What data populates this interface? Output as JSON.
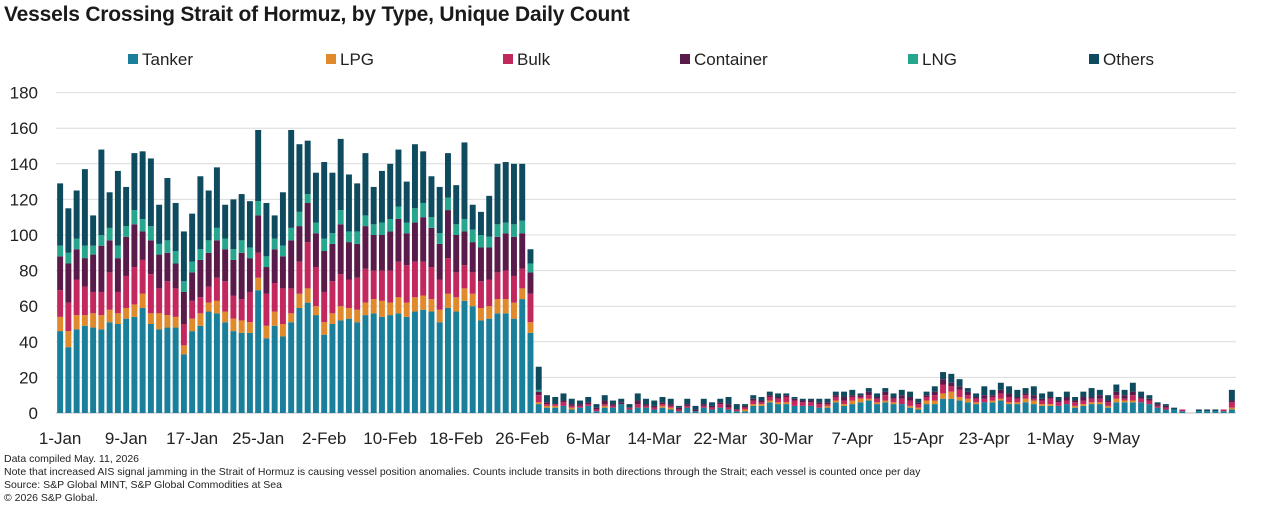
{
  "title": "Vessels Crossing Strait of Hormuz, by Type, Unique Daily Count",
  "notes": [
    "Data compiled May. 11, 2026",
    "Note that increased AIS signal jamming in the Strait of Hormuz is causing vessel position anomalies. Counts include transits in both directions through the Strait; each vessel is counted once per day",
    "Source: S&P Global MINT, S&P Global Commodities at Sea",
    "© 2026 S&P Global."
  ],
  "chart_data": {
    "type": "bar",
    "stacked": true,
    "title": "Vessels Crossing Strait of Hormuz, by Type, Unique Daily Count",
    "xlabel": "",
    "ylabel": "",
    "ylim": [
      0,
      180
    ],
    "yticks": [
      0,
      20,
      40,
      60,
      80,
      100,
      120,
      140,
      160,
      180
    ],
    "xtick_labels": [
      "1-Jan",
      "9-Jan",
      "17-Jan",
      "25-Jan",
      "2-Feb",
      "10-Feb",
      "18-Feb",
      "26-Feb",
      "6-Mar",
      "14-Mar",
      "22-Mar",
      "30-Mar",
      "7-Apr",
      "15-Apr",
      "23-Apr",
      "1-May",
      "9-May"
    ],
    "xtick_every_days": 8,
    "legend_position": "top",
    "grid": "horizontal",
    "first_date": "2026-01-01",
    "last_date": "2026-05-10",
    "series": [
      {
        "name": "Tanker",
        "color": "#1a7f9b",
        "values": [
          46,
          37,
          47,
          49,
          48,
          47,
          51,
          50,
          53,
          54,
          59,
          50,
          47,
          48,
          48,
          33,
          46,
          49,
          57,
          56,
          51,
          46,
          45,
          45,
          69,
          42,
          49,
          43,
          51,
          59,
          62,
          55,
          44,
          50,
          52,
          53,
          51,
          55,
          56,
          54,
          55,
          56,
          54,
          57,
          58,
          57,
          51,
          59,
          57,
          63,
          60,
          52,
          53,
          56,
          56,
          53,
          64,
          45,
          5,
          3,
          3,
          4,
          2,
          3,
          4,
          1,
          3,
          3,
          5,
          2,
          3,
          3,
          2,
          3,
          2,
          1,
          3,
          1,
          3,
          2,
          3,
          2,
          1,
          1,
          4,
          4,
          6,
          5,
          5,
          4,
          4,
          4,
          3,
          3,
          6,
          4,
          5,
          6,
          7,
          5,
          6,
          5,
          5,
          3,
          2,
          5,
          5,
          8,
          8,
          7,
          6,
          5,
          6,
          6,
          7,
          5,
          5,
          6,
          5,
          4,
          4,
          4,
          5,
          3,
          4,
          5,
          5,
          3,
          6,
          6,
          6,
          6,
          5,
          3,
          2,
          2,
          1,
          0,
          1,
          1,
          1,
          1,
          2
        ]
      },
      {
        "name": "LPG",
        "color": "#e08a2c",
        "values": [
          8,
          9,
          8,
          6,
          8,
          8,
          7,
          6,
          6,
          7,
          8,
          6,
          9,
          7,
          6,
          5,
          7,
          7,
          5,
          7,
          6,
          7,
          7,
          6,
          7,
          7,
          8,
          7,
          5,
          8,
          8,
          5,
          7,
          6,
          8,
          6,
          7,
          7,
          8,
          9,
          7,
          9,
          8,
          8,
          8,
          7,
          7,
          8,
          8,
          7,
          7,
          7,
          7,
          8,
          8,
          9,
          6,
          6,
          1,
          1,
          1,
          0,
          1,
          0,
          0,
          0,
          1,
          0,
          0,
          0,
          0,
          0,
          0,
          1,
          1,
          0,
          0,
          0,
          0,
          0,
          0,
          0,
          0,
          1,
          1,
          1,
          1,
          1,
          1,
          0,
          0,
          0,
          0,
          1,
          1,
          1,
          2,
          2,
          1,
          1,
          1,
          1,
          0,
          1,
          1,
          2,
          2,
          3,
          4,
          2,
          2,
          1,
          0,
          1,
          1,
          1,
          1,
          2,
          2,
          1,
          1,
          0,
          0,
          1,
          1,
          1,
          1,
          1,
          2,
          1,
          1,
          0,
          0,
          0,
          0,
          0,
          0,
          0,
          0,
          0,
          0,
          0,
          1
        ]
      },
      {
        "name": "Bulk",
        "color": "#c2275e",
        "values": [
          15,
          16,
          20,
          16,
          12,
          13,
          21,
          12,
          18,
          21,
          19,
          22,
          14,
          19,
          16,
          12,
          10,
          9,
          9,
          13,
          17,
          13,
          12,
          17,
          14,
          18,
          16,
          20,
          14,
          18,
          26,
          22,
          17,
          18,
          18,
          16,
          18,
          19,
          16,
          17,
          18,
          20,
          21,
          20,
          19,
          18,
          17,
          20,
          14,
          13,
          12,
          15,
          15,
          15,
          16,
          15,
          11,
          16,
          4,
          1,
          1,
          2,
          1,
          1,
          1,
          1,
          1,
          1,
          0,
          1,
          2,
          1,
          1,
          1,
          1,
          1,
          1,
          0,
          1,
          1,
          2,
          1,
          1,
          1,
          2,
          1,
          2,
          2,
          3,
          3,
          2,
          2,
          2,
          1,
          2,
          2,
          2,
          1,
          2,
          2,
          3,
          2,
          3,
          3,
          2,
          2,
          3,
          5,
          3,
          4,
          2,
          2,
          2,
          2,
          3,
          3,
          2,
          2,
          1,
          2,
          3,
          2,
          2,
          2,
          2,
          2,
          2,
          2,
          2,
          1,
          3,
          2,
          2,
          1,
          1,
          0,
          1,
          0,
          0,
          0,
          0,
          1,
          3
        ]
      },
      {
        "name": "Container",
        "color": "#5a1b4b",
        "values": [
          19,
          22,
          17,
          16,
          21,
          26,
          18,
          19,
          22,
          24,
          16,
          19,
          19,
          16,
          14,
          18,
          16,
          21,
          19,
          21,
          18,
          20,
          26,
          19,
          21,
          15,
          19,
          18,
          27,
          20,
          22,
          19,
          23,
          21,
          28,
          21,
          19,
          24,
          20,
          20,
          22,
          24,
          18,
          22,
          25,
          22,
          20,
          27,
          21,
          19,
          17,
          19,
          18,
          20,
          21,
          22,
          20,
          12,
          2,
          1,
          0,
          1,
          1,
          1,
          1,
          1,
          2,
          1,
          1,
          0,
          2,
          1,
          1,
          1,
          1,
          1,
          1,
          1,
          1,
          1,
          1,
          2,
          0,
          1,
          1,
          1,
          1,
          1,
          1,
          1,
          1,
          1,
          1,
          1,
          1,
          2,
          1,
          1,
          2,
          1,
          2,
          1,
          2,
          2,
          1,
          1,
          2,
          3,
          2,
          2,
          2,
          1,
          2,
          1,
          2,
          2,
          1,
          1,
          2,
          1,
          1,
          1,
          2,
          1,
          2,
          1,
          2,
          1,
          2,
          2,
          2,
          1,
          1,
          1,
          1,
          0,
          0,
          0,
          0,
          0,
          0,
          0,
          1
        ]
      },
      {
        "name": "LNG",
        "color": "#26a68d",
        "values": [
          6,
          6,
          6,
          7,
          5,
          6,
          7,
          7,
          6,
          8,
          7,
          8,
          6,
          7,
          7,
          6,
          6,
          6,
          7,
          7,
          6,
          6,
          7,
          6,
          8,
          6,
          6,
          6,
          7,
          8,
          5,
          6,
          7,
          6,
          8,
          6,
          7,
          6,
          6,
          7,
          7,
          7,
          6,
          8,
          8,
          6,
          6,
          7,
          6,
          7,
          7,
          7,
          6,
          7,
          6,
          7,
          7,
          5,
          1,
          0,
          0,
          0,
          0,
          0,
          0,
          0,
          0,
          0,
          0,
          0,
          0,
          0,
          0,
          0,
          0,
          0,
          0,
          0,
          0,
          0,
          0,
          0,
          0,
          0,
          0,
          0,
          0,
          0,
          0,
          0,
          0,
          0,
          0,
          0,
          0,
          0,
          0,
          0,
          0,
          0,
          0,
          0,
          0,
          0,
          0,
          0,
          0,
          0,
          0,
          0,
          0,
          0,
          0,
          0,
          0,
          0,
          0,
          0,
          0,
          0,
          0,
          0,
          0,
          0,
          0,
          0,
          0,
          0,
          0,
          0,
          0,
          0,
          0,
          0,
          0,
          0,
          0,
          0,
          0,
          0,
          0,
          0,
          0
        ]
      },
      {
        "name": "Others",
        "color": "#0e4b5e",
        "values": [
          35,
          25,
          27,
          43,
          17,
          48,
          20,
          42,
          22,
          32,
          38,
          38,
          22,
          35,
          27,
          28,
          27,
          41,
          28,
          34,
          19,
          28,
          26,
          26,
          40,
          30,
          13,
          30,
          55,
          38,
          30,
          28,
          43,
          34,
          40,
          32,
          27,
          35,
          21,
          29,
          31,
          32,
          23,
          36,
          29,
          23,
          26,
          25,
          22,
          43,
          14,
          13,
          23,
          34,
          34,
          34,
          32,
          8,
          13,
          4,
          4,
          4,
          3,
          2,
          3,
          2,
          3,
          2,
          2,
          2,
          4,
          3,
          3,
          3,
          3,
          1,
          3,
          2,
          3,
          2,
          2,
          4,
          3,
          1,
          2,
          2,
          2,
          2,
          1,
          1,
          1,
          1,
          2,
          2,
          2,
          3,
          3,
          1,
          2,
          2,
          2,
          2,
          3,
          3,
          2,
          2,
          3,
          4,
          5,
          4,
          2,
          2,
          5,
          3,
          4,
          4,
          4,
          3,
          5,
          3,
          3,
          2,
          3,
          2,
          3,
          5,
          3,
          3,
          4,
          3,
          5,
          3,
          2,
          1,
          1,
          1,
          0,
          0,
          1,
          1,
          1,
          0,
          6
        ]
      }
    ]
  }
}
